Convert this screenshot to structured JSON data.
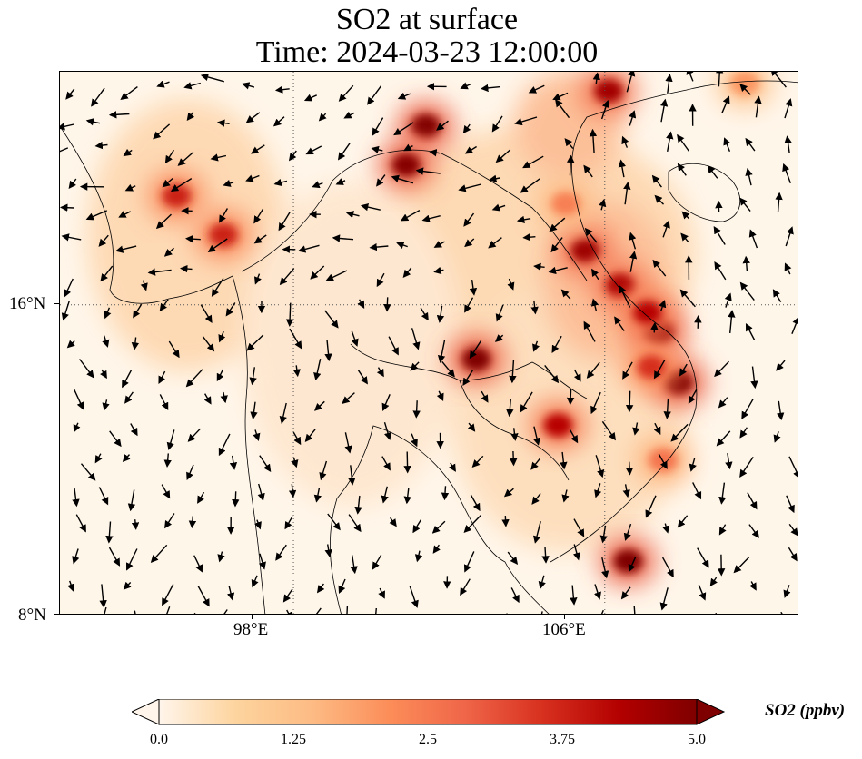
{
  "title": {
    "line1": "SO2 at surface",
    "line2": "Time: 2024-03-23 12:00:00"
  },
  "map": {
    "lon_range": [
      92,
      111
    ],
    "lat_range": [
      8,
      22
    ],
    "gridlines": {
      "lons": [
        98,
        106
      ],
      "lats": [
        16
      ],
      "style": "dotted"
    },
    "x_ticks": [
      {
        "lon": 98,
        "label": "98°E"
      },
      {
        "lon": 106,
        "label": "106°E"
      }
    ],
    "y_ticks": [
      {
        "lat": 16,
        "label": "16°N"
      },
      {
        "lat": 8,
        "label": "8°N"
      }
    ],
    "hotspots": [
      {
        "lon": 107.9,
        "lat": 14.0,
        "level": 5.0
      },
      {
        "lon": 106.6,
        "lat": 9.4,
        "level": 5.0
      },
      {
        "lon": 107.4,
        "lat": 15.3,
        "level": 4.8
      },
      {
        "lon": 101.4,
        "lat": 20.6,
        "level": 5.0
      },
      {
        "lon": 100.9,
        "lat": 19.6,
        "level": 4.9
      },
      {
        "lon": 102.7,
        "lat": 14.6,
        "level": 5.0
      },
      {
        "lon": 105.5,
        "lat": 17.4,
        "level": 4.6
      },
      {
        "lon": 106.4,
        "lat": 16.5,
        "level": 4.4
      },
      {
        "lon": 107.1,
        "lat": 15.8,
        "level": 4.2
      },
      {
        "lon": 106.1,
        "lat": 21.5,
        "level": 4.5
      },
      {
        "lon": 95.0,
        "lat": 18.8,
        "level": 3.8
      },
      {
        "lon": 96.2,
        "lat": 17.8,
        "level": 3.8
      },
      {
        "lon": 104.8,
        "lat": 12.9,
        "level": 4.2
      },
      {
        "lon": 107.2,
        "lat": 14.4,
        "level": 3.6
      },
      {
        "lon": 107.5,
        "lat": 12.0,
        "level": 2.6
      },
      {
        "lon": 105.0,
        "lat": 18.6,
        "level": 2.4
      },
      {
        "lon": 109.6,
        "lat": 21.7,
        "level": 2.0
      }
    ],
    "wind_vectors": "quiver field of wind arrows (black)"
  },
  "colorbar": {
    "range": [
      0.0,
      5.0
    ],
    "ticks": [
      "0.0",
      "1.25",
      "2.5",
      "3.75",
      "5.0"
    ],
    "extend": "both",
    "colormap": [
      "#fff5eb",
      "#fdd49e",
      "#fdbb84",
      "#fc8d59",
      "#ef6548",
      "#d7301f",
      "#b30000",
      "#7f0000"
    ],
    "label": "SO2 (ppbv)"
  }
}
